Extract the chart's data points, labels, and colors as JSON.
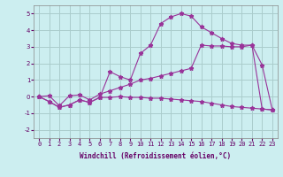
{
  "xlabel": "Windchill (Refroidissement éolien,°C)",
  "background_color": "#cceef0",
  "grid_color": "#aacccc",
  "line_color": "#993399",
  "x_hours": [
    0,
    1,
    2,
    3,
    4,
    5,
    6,
    7,
    8,
    9,
    10,
    11,
    12,
    13,
    14,
    15,
    16,
    17,
    18,
    19,
    20,
    21,
    22,
    23
  ],
  "y_flat": [
    0.0,
    -0.3,
    -0.65,
    -0.5,
    -0.2,
    -0.35,
    -0.05,
    -0.05,
    0.0,
    -0.05,
    -0.05,
    -0.1,
    -0.1,
    -0.15,
    -0.2,
    -0.25,
    -0.3,
    -0.4,
    -0.5,
    -0.6,
    -0.65,
    -0.7,
    -0.75,
    -0.8
  ],
  "y_diag": [
    0.0,
    0.05,
    -0.55,
    0.05,
    0.1,
    -0.2,
    0.15,
    0.35,
    0.55,
    0.75,
    1.0,
    1.1,
    1.25,
    1.4,
    1.55,
    1.7,
    3.1,
    3.05,
    3.05,
    3.0,
    3.0,
    3.1,
    -0.75,
    -0.8
  ],
  "y_wind": [
    0.0,
    -0.3,
    -0.65,
    -0.5,
    -0.2,
    -0.35,
    -0.05,
    1.5,
    1.2,
    1.0,
    2.6,
    3.1,
    4.4,
    4.8,
    5.0,
    4.85,
    4.2,
    3.85,
    3.5,
    3.2,
    3.1,
    3.1,
    1.9,
    -0.8
  ],
  "ylim": [
    -2.5,
    5.5
  ],
  "xlim": [
    -0.5,
    23.5
  ],
  "yticks": [
    -2,
    -1,
    0,
    1,
    2,
    3,
    4,
    5
  ],
  "ytick_labels": [
    "-2",
    "-1",
    "0",
    "1",
    "2",
    "3",
    "4",
    "5"
  ]
}
